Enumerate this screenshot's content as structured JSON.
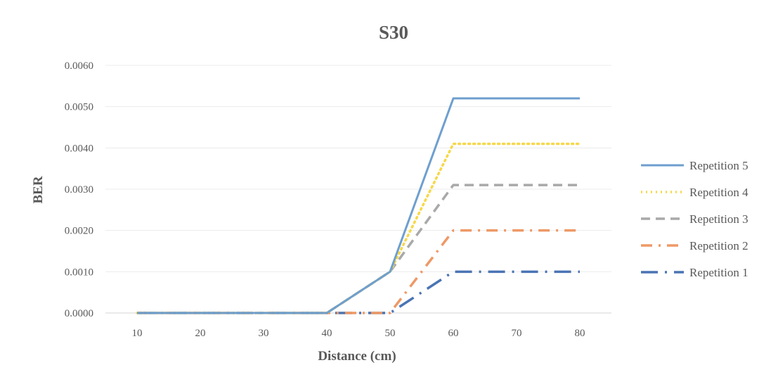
{
  "chart_data": {
    "type": "line",
    "title": "S30",
    "xlabel": "Distance (cm)",
    "ylabel": "BER",
    "x": [
      10,
      20,
      30,
      40,
      50,
      60,
      70,
      80
    ],
    "xlim": [
      5,
      85
    ],
    "ylim": [
      0,
      0.006
    ],
    "yticks": [
      "0.0000",
      "0.0010",
      "0.0020",
      "0.0030",
      "0.0040",
      "0.0050",
      "0.0060"
    ],
    "yticks_values": [
      0,
      0.001,
      0.002,
      0.003,
      0.004,
      0.005,
      0.006
    ],
    "grid": true,
    "legend_position": "right",
    "series": [
      {
        "name": "Repetition 5",
        "values": [
          0,
          0,
          0,
          0,
          0.001,
          0.0052,
          0.0052,
          0.0052
        ],
        "color": "#6e9fcf",
        "style": "solid"
      },
      {
        "name": "Repetition 4",
        "values": [
          0,
          0,
          0,
          0,
          0.001,
          0.0041,
          0.0041,
          0.0041
        ],
        "color": "#f7d84a",
        "style": "dotted"
      },
      {
        "name": "Repetition 3",
        "values": [
          0,
          0,
          0,
          0,
          0.001,
          0.0031,
          0.0031,
          0.0031
        ],
        "color": "#a9a9a9",
        "style": "dashed"
      },
      {
        "name": "Repetition 2",
        "values": [
          0,
          0,
          0,
          0,
          0,
          0.002,
          0.002,
          0.002
        ],
        "color": "#ee9966",
        "style": "dashdot"
      },
      {
        "name": "Repetition 1",
        "values": [
          0,
          0,
          0,
          0,
          0,
          0.001,
          0.001,
          0.001
        ],
        "color": "#4a74b4",
        "style": "longdashdot"
      }
    ]
  }
}
